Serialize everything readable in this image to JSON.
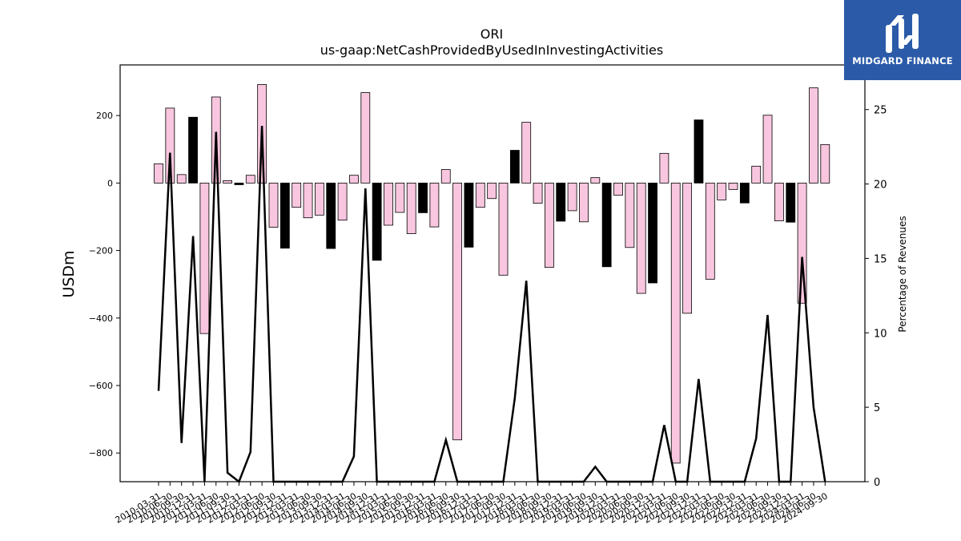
{
  "chart_data": {
    "type": "bar",
    "title": "ORI",
    "subtitle": "us-gaap:NetCashProvidedByUsedInInvestingActivities",
    "ylabel": "USDm",
    "y2label": "Percentage of Revenues",
    "ylim": [
      -885,
      350
    ],
    "y2lim": [
      0,
      28
    ],
    "yticks": [
      -800,
      -600,
      -400,
      -200,
      0,
      200
    ],
    "y2ticks": [
      0,
      5,
      10,
      15,
      20,
      25
    ],
    "grid": false,
    "legend": "none",
    "colors": {
      "pink": "#f9c6df",
      "black": "#000000",
      "line": "#000000",
      "edge": "#000000"
    },
    "categories": [
      "2010-03-31",
      "2010-06-30",
      "2010-09-30",
      "2010-12-31",
      "2011-03-31",
      "2011-06-30",
      "2011-09-30",
      "2011-12-31",
      "2012-03-31",
      "2012-06-30",
      "2012-09-30",
      "2012-12-31",
      "2013-03-31",
      "2013-06-30",
      "2013-09-30",
      "2013-12-31",
      "2014-03-31",
      "2014-06-30",
      "2014-09-30",
      "2014-12-31",
      "2015-03-31",
      "2015-06-30",
      "2015-09-30",
      "2015-12-31",
      "2016-03-31",
      "2016-06-30",
      "2016-09-30",
      "2016-12-31",
      "2017-03-31",
      "2017-06-30",
      "2017-09-30",
      "2017-12-31",
      "2018-03-31",
      "2018-06-30",
      "2018-09-30",
      "2018-12-31",
      "2019-03-31",
      "2019-06-30",
      "2019-09-30",
      "2019-12-31",
      "2020-03-31",
      "2020-06-30",
      "2020-09-30",
      "2020-12-31",
      "2021-03-31",
      "2021-06-30",
      "2021-09-30",
      "2021-12-31",
      "2022-03-31",
      "2022-06-30",
      "2022-09-30",
      "2022-12-31",
      "2023-03-31",
      "2023-06-30",
      "2023-09-30",
      "2023-12-31",
      "2024-03-31",
      "2024-06-30",
      "2024-09-30"
    ],
    "xtick_labels": [
      "2010-03-31",
      "2010-06-30",
      "2010-09-30",
      "2010-12-31",
      "2011-03-31",
      "2011-06-30",
      "2011-09-30",
      "2011-12-31",
      "2012-03-31",
      "2012-06-30",
      "2012-09-30",
      "2012-12-31",
      "2013-03-31",
      "2013-06-30",
      "2013-09-30",
      "2013-12-31",
      "2014-03-31",
      "2014-06-30",
      "2014-09-30",
      "2014-12-31",
      "2015-03-31",
      "2015-06-30",
      "2015-09-30",
      "2015-12-31",
      "2016-03-31",
      "2016-06-30",
      "2016-09-30",
      "2016-12-31",
      "2017-03-31",
      "2017-06-30",
      "2017-09-30",
      "2017-12-31",
      "2018-03-31",
      "2018-06-30",
      "2018-09-30",
      "2018-12-31",
      "2019-03-31",
      "2019-06-30",
      "2019-09-30",
      "2019-12-31",
      "2020-03-31",
      "2020-06-30",
      "2020-09-30",
      "2020-12-31",
      "2021-03-31",
      "2021-06-30",
      "2021-09-30",
      "2021-12-31",
      "2022-03-31",
      "2022-06-30",
      "2022-09-30",
      "2022-12-31",
      "2023-03-31",
      "2023-06-30",
      "2023-09-30",
      "2023-12-31",
      "2024-03-31",
      "2024-06-30",
      "2024-09-30"
    ],
    "series": [
      {
        "type": "bar",
        "axis": "left",
        "values": [
          57,
          222,
          25,
          195,
          -446,
          255,
          7,
          -5,
          23,
          292,
          -131,
          -193,
          -72,
          -103,
          -95,
          -194,
          -110,
          23,
          268,
          -229,
          -125,
          -87,
          -150,
          -88,
          -130,
          40,
          -761,
          -190,
          -72,
          -46,
          -273,
          97,
          180,
          -60,
          -250,
          -113,
          -82,
          -115,
          16,
          -248,
          -36,
          -191,
          -327,
          -296,
          88,
          -830,
          -386,
          187,
          -285,
          -50,
          -19,
          -59,
          50,
          201,
          -112,
          -116,
          -356,
          282,
          114
        ],
        "colors": [
          "pink",
          "pink",
          "pink",
          "black",
          "pink",
          "pink",
          "pink",
          "black",
          "pink",
          "pink",
          "pink",
          "black",
          "pink",
          "pink",
          "pink",
          "black",
          "pink",
          "pink",
          "pink",
          "black",
          "pink",
          "pink",
          "pink",
          "black",
          "pink",
          "pink",
          "pink",
          "black",
          "pink",
          "pink",
          "pink",
          "black",
          "pink",
          "pink",
          "pink",
          "black",
          "pink",
          "pink",
          "pink",
          "black",
          "pink",
          "pink",
          "pink",
          "black",
          "pink",
          "pink",
          "pink",
          "black",
          "pink",
          "pink",
          "pink",
          "black",
          "pink",
          "pink",
          "pink",
          "black",
          "pink",
          "pink",
          "pink"
        ]
      },
      {
        "type": "line",
        "axis": "right",
        "values": [
          6.1,
          22.1,
          2.6,
          16.5,
          0,
          23.5,
          0.6,
          0,
          2.0,
          23.9,
          0,
          0,
          0,
          0,
          0,
          0,
          0,
          1.7,
          19.7,
          0,
          0,
          0,
          0,
          0,
          0,
          2.8,
          0,
          0,
          0,
          0,
          0,
          5.6,
          13.5,
          0,
          0,
          0,
          0,
          0,
          1.0,
          0,
          0,
          0,
          0,
          0,
          3.8,
          0,
          0,
          6.9,
          0,
          0,
          0,
          0,
          2.9,
          11.2,
          0,
          0,
          15.1,
          5.0,
          0
        ]
      }
    ]
  },
  "logo": {
    "text": "MIDGARD FINANCE",
    "icon": "midgard-logo-icon"
  }
}
